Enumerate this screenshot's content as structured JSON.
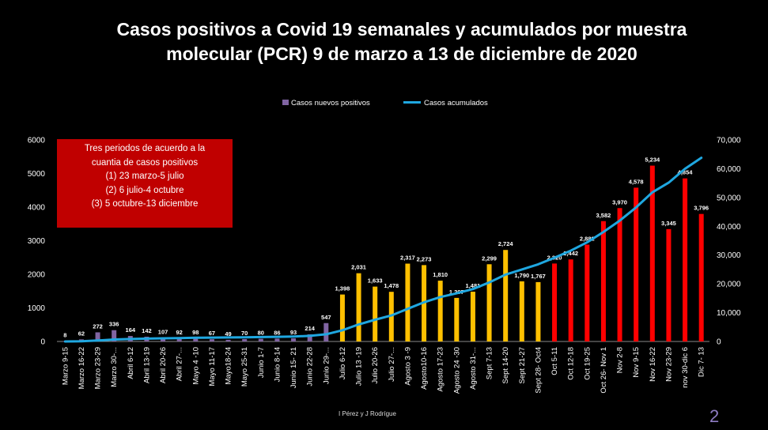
{
  "title_lines": [
    "Casos positivos a Covid 19 semanales y acumulados por muestra",
    "molecular (PCR) 9 de marzo a 13 de diciembre de 2020"
  ],
  "note_lines": [
    "Tres periodos de acuerdo a la",
    "cuantia de casos positivos",
    "(1) 23 marzo-5 julio",
    "(2) 6 julio-4 octubre",
    "(3) 5 octubre-13 diciembre"
  ],
  "credit": "I Pérez y J Rodrígue",
  "page_number": "2",
  "colors": {
    "period1": "#8064a2",
    "period2": "#ffc000",
    "period3": "#ff0000",
    "line": "#1fa7e0",
    "note_bg": "#c00000",
    "page_number": "#8e7cc3"
  },
  "chart_data": {
    "type": "bar",
    "legend": {
      "position": "top",
      "entries": [
        {
          "label": "Casos nuevos positivos",
          "kind": "bar",
          "color": "#8064a2"
        },
        {
          "label": "Casos acumulados",
          "kind": "line",
          "color": "#1fa7e0"
        }
      ]
    },
    "y_left": {
      "min": 0,
      "max": 6000,
      "ticks": [
        "0",
        "1000",
        "2000",
        "3000",
        "4000",
        "5000",
        "6000"
      ]
    },
    "y_right": {
      "min": 0,
      "max": 70000,
      "ticks": [
        "0",
        "10,000",
        "20,000",
        "30,000",
        "40,000",
        "50,000",
        "60,000",
        "70,000"
      ]
    },
    "grid": false,
    "categories": [
      "Marzo 9-15",
      "Marzo 16-22",
      "Marzo 23-29",
      "Marzo 30-...",
      "Abril 6-12",
      "Abril 13-19",
      "Abril 20-26",
      "Abril 27-...",
      "Mayo 4 -10",
      "Mayo 11-17",
      "Mayo18-24",
      "Mayo 25-31",
      "Junio 1-7",
      "Junio 8-14",
      "Junio 15- 21",
      "Junio 22-28",
      "Junio 29-...",
      "Julio 6-12",
      "Julio 13 -19",
      "Julio 20-26",
      "Julio 27-...",
      "Agosto 3 -9",
      "Agosto10-16",
      "Agosto 17-23",
      "Agosto 24 -30",
      "Agosto 31-...",
      "Sept 7-13",
      "Sept 14-20",
      "Sept 21-27",
      "Sept 28- Oct4",
      "Oct 5-11",
      "Oct 12-18",
      "Oct 19-25",
      "Oct 26- Nov 1",
      "Nov 2-8",
      "Nov 9-15",
      "Nov 16-22",
      "Nov 23-29",
      "nov 30-dic 6",
      "Dic 7- 13"
    ],
    "series": [
      {
        "name": "Casos nuevos positivos",
        "axis": "left",
        "values": [
          8,
          62,
          272,
          336,
          164,
          142,
          107,
          92,
          98,
          67,
          49,
          70,
          80,
          86,
          93,
          214,
          547,
          1398,
          2031,
          1633,
          1478,
          2317,
          2273,
          1810,
          1297,
          1481,
          2299,
          2724,
          1790,
          1767,
          2320,
          2442,
          2882,
          3582,
          3970,
          4578,
          5234,
          3345,
          4854,
          3796
        ],
        "labels": [
          "8",
          "62",
          "272",
          "336",
          "164",
          "142",
          "107",
          "92",
          "98",
          "67",
          "49",
          "70",
          "80",
          "86",
          "93",
          "214",
          "547",
          "1,398",
          "2,031",
          "1,633",
          "1,478",
          "2,317",
          "2,273",
          "1,810",
          "1,297",
          "1,481",
          "2,299",
          "2,724",
          "1,790",
          "1,767",
          "2,320",
          "2,442",
          "2,882",
          "3,582",
          "3,970",
          "4,578",
          "5,234",
          "3,345",
          "4,854",
          "3,796"
        ],
        "period": [
          1,
          1,
          1,
          1,
          1,
          1,
          1,
          1,
          1,
          1,
          1,
          1,
          1,
          1,
          1,
          1,
          1,
          2,
          2,
          2,
          2,
          2,
          2,
          2,
          2,
          2,
          2,
          2,
          2,
          2,
          3,
          3,
          3,
          3,
          3,
          3,
          3,
          3,
          3,
          3
        ]
      },
      {
        "name": "Casos acumulados",
        "axis": "right",
        "type": "line",
        "values": [
          8,
          70,
          342,
          678,
          842,
          984,
          1091,
          1183,
          1281,
          1348,
          1397,
          1467,
          1547,
          1633,
          1726,
          1940,
          2487,
          3885,
          5916,
          7549,
          9027,
          11344,
          13617,
          15427,
          16724,
          18205,
          20504,
          23228,
          25018,
          26785,
          29105,
          31547,
          34429,
          38011,
          41981,
          46559,
          51793,
          55138,
          59992,
          63788
        ]
      }
    ]
  }
}
